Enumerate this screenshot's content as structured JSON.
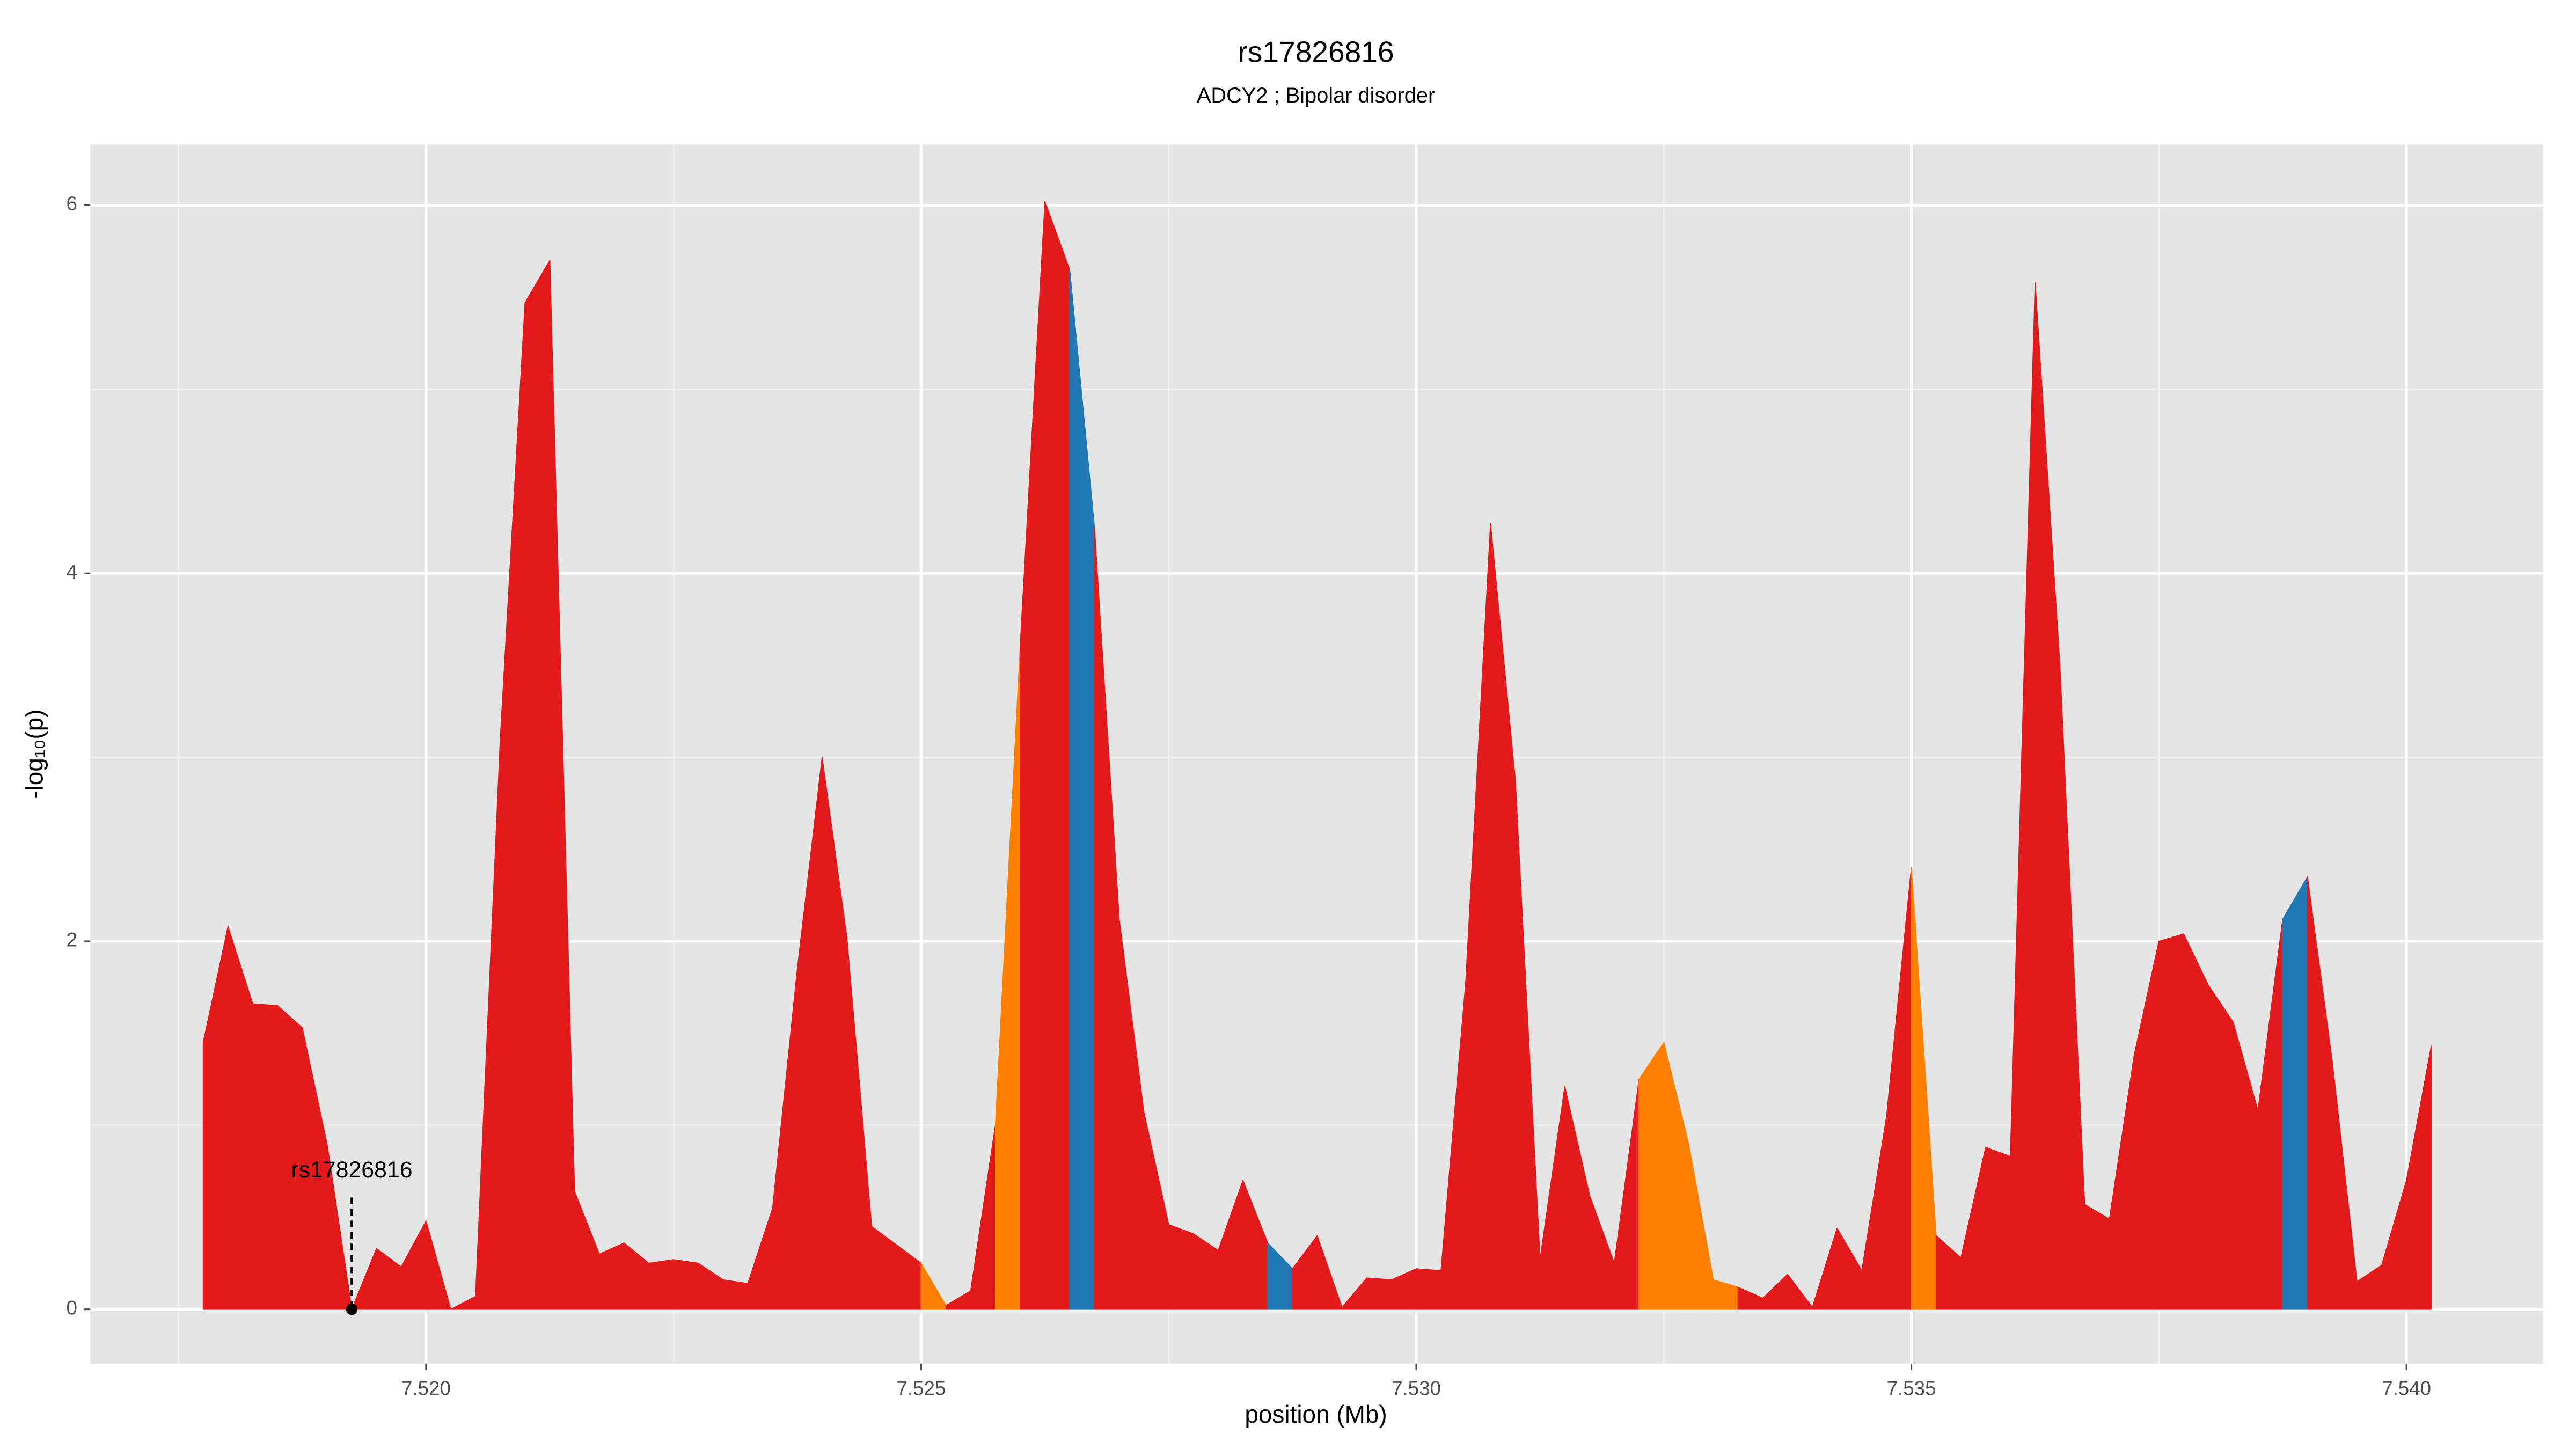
{
  "chart_data": {
    "type": "area",
    "title": "rs17826816",
    "subtitle": "ADCY2 ; Bipolar disorder",
    "x_label": "position (Mb)",
    "y_label": "-log₁₀(p)",
    "x": [
      7.51775,
      7.518,
      7.51825,
      7.5185,
      7.51875,
      7.519,
      7.51925,
      7.5195,
      7.51975,
      7.52,
      7.52025,
      7.5205,
      7.52075,
      7.521,
      7.52125,
      7.5215,
      7.52175,
      7.522,
      7.52225,
      7.5225,
      7.52275,
      7.523,
      7.52325,
      7.5235,
      7.52375,
      7.524,
      7.52425,
      7.5245,
      7.52475,
      7.525,
      7.52525,
      7.5255,
      7.52575,
      7.526,
      7.52625,
      7.5265,
      7.52675,
      7.527,
      7.52725,
      7.5275,
      7.52775,
      7.528,
      7.52825,
      7.5285,
      7.52875,
      7.529,
      7.52925,
      7.5295,
      7.52975,
      7.53,
      7.53025,
      7.5305,
      7.53075,
      7.531,
      7.53125,
      7.5315,
      7.53175,
      7.532,
      7.53225,
      7.5325,
      7.53275,
      7.533,
      7.53325,
      7.5335,
      7.53375,
      7.534,
      7.53425,
      7.5345,
      7.53475,
      7.535,
      7.53525,
      7.5355,
      7.53575,
      7.536,
      7.53625,
      7.5365,
      7.53675,
      7.537,
      7.53725,
      7.5375,
      7.53775,
      7.538,
      7.53825,
      7.5385,
      7.53875,
      7.539,
      7.53925,
      7.5395,
      7.53975,
      7.54,
      7.54025
    ],
    "series": [
      {
        "values": [
          1.45,
          2.08,
          1.66,
          1.65,
          1.53,
          0.9,
          0,
          0.33,
          0.23,
          0.48,
          0,
          0.07,
          3.1,
          5.47,
          5.7,
          0.64,
          0.3,
          0.36,
          0.25,
          0.27,
          0.25,
          0.16,
          0.14,
          0.55,
          1.85,
          3.0,
          2.02,
          0.45,
          0.35,
          0.25,
          0.02,
          0.1,
          1.0,
          3.6,
          6.02,
          5.65,
          4.25,
          2.12,
          1.07,
          0.46,
          0.41,
          0.32,
          0.7,
          0.36,
          0.22,
          0.4,
          0.01,
          0.17,
          0.16,
          0.22,
          0.21,
          1.78,
          4.27,
          2.88,
          0.27,
          1.21,
          0.62,
          0.25,
          1.25,
          1.45,
          0.9,
          0.16,
          0.12,
          0.06,
          0.19,
          0.01,
          0.44,
          0.21,
          1.05,
          2.4,
          0.4,
          0.28,
          0.88,
          0.83,
          5.58,
          3.5,
          0.57,
          0.49,
          1.38,
          2.0,
          2.04,
          1.76,
          1.56,
          1.08,
          2.12,
          2.35,
          1.35,
          0.15,
          0.24,
          0.7,
          1.43
        ],
        "colors": [
          "#e31a1c",
          "#e31a1c",
          "#e31a1c",
          "#e31a1c",
          "#e31a1c",
          "#e31a1c",
          "#e31a1c",
          "#e31a1c",
          "#e31a1c",
          "#e31a1c",
          "#e31a1c",
          "#e31a1c",
          "#e31a1c",
          "#e31a1c",
          "#e31a1c",
          "#e31a1c",
          "#e31a1c",
          "#e31a1c",
          "#e31a1c",
          "#e31a1c",
          "#e31a1c",
          "#e31a1c",
          "#e31a1c",
          "#e31a1c",
          "#e31a1c",
          "#e31a1c",
          "#e31a1c",
          "#e31a1c",
          "#e31a1c",
          "#ff7f00",
          "#e31a1c",
          "#e31a1c",
          "#ff7f00",
          "#e31a1c",
          "#e31a1c",
          "#1f78b4",
          "#e31a1c",
          "#e31a1c",
          "#e31a1c",
          "#e31a1c",
          "#e31a1c",
          "#e31a1c",
          "#e31a1c",
          "#1f78b4",
          "#e31a1c",
          "#e31a1c",
          "#e31a1c",
          "#e31a1c",
          "#e31a1c",
          "#e31a1c",
          "#e31a1c",
          "#e31a1c",
          "#e31a1c",
          "#e31a1c",
          "#e31a1c",
          "#e31a1c",
          "#e31a1c",
          "#e31a1c",
          "#ff7f00",
          "#ff7f00",
          "#ff7f00",
          "#ff7f00",
          "#e31a1c",
          "#e31a1c",
          "#e31a1c",
          "#e31a1c",
          "#e31a1c",
          "#e31a1c",
          "#e31a1c",
          "#ff7f00",
          "#e31a1c",
          "#e31a1c",
          "#e31a1c",
          "#e31a1c",
          "#e31a1c",
          "#e31a1c",
          "#e31a1c",
          "#e31a1c",
          "#e31a1c",
          "#e31a1c",
          "#e31a1c",
          "#e31a1c",
          "#e31a1c",
          "#e31a1c",
          "#1f78b4",
          "#e31a1c",
          "#e31a1c",
          "#e31a1c",
          "#e31a1c",
          "#e31a1c",
          "#e31a1c"
        ]
      }
    ],
    "annotation": {
      "label": "rs17826816",
      "x": 7.51925,
      "y": 0
    },
    "xlim": [
      7.51661,
      7.54138
    ],
    "ylim": [
      -0.295,
      6.33
    ],
    "xticks": [
      {
        "value": 7.52,
        "label": "7.520"
      },
      {
        "value": 7.525,
        "label": "7.525"
      },
      {
        "value": 7.53,
        "label": "7.530"
      },
      {
        "value": 7.535,
        "label": "7.535"
      },
      {
        "value": 7.54,
        "label": "7.540"
      }
    ],
    "yticks": [
      0,
      2,
      4,
      6
    ],
    "grid": true
  }
}
